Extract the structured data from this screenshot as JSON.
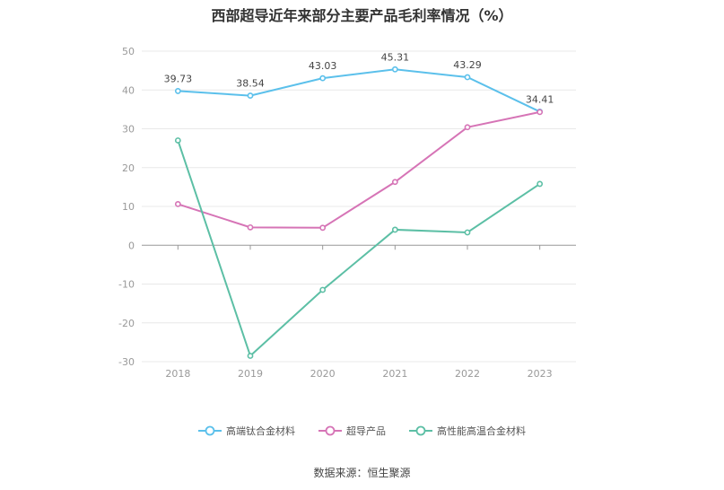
{
  "chart_data": {
    "type": "line",
    "title": "西部超导近年来部分主要产品毛利率情况（%）",
    "categories": [
      "2018",
      "2019",
      "2020",
      "2021",
      "2022",
      "2023"
    ],
    "ylim": [
      -30,
      50
    ],
    "yticks": [
      50,
      40,
      30,
      20,
      10,
      0,
      -10,
      -20,
      -30
    ],
    "grid": true,
    "legend_position": "bottom",
    "series": [
      {
        "name": "高端钛合金材料",
        "color": "#5bc0eb",
        "values": [
          39.73,
          38.54,
          43.03,
          45.31,
          43.29,
          34.41
        ],
        "labels": [
          "39.73",
          "38.54",
          "43.03",
          "45.31",
          "43.29",
          "34.41"
        ]
      },
      {
        "name": "超导产品",
        "color": "#d674b6",
        "values": [
          10.6,
          4.6,
          4.5,
          16.3,
          30.4,
          34.3
        ]
      },
      {
        "name": "高性能高温合金材料",
        "color": "#5cbfa5",
        "values": [
          27.0,
          -28.5,
          -11.5,
          4.0,
          3.3,
          15.8
        ]
      }
    ]
  },
  "source": "数据来源：恒生聚源"
}
